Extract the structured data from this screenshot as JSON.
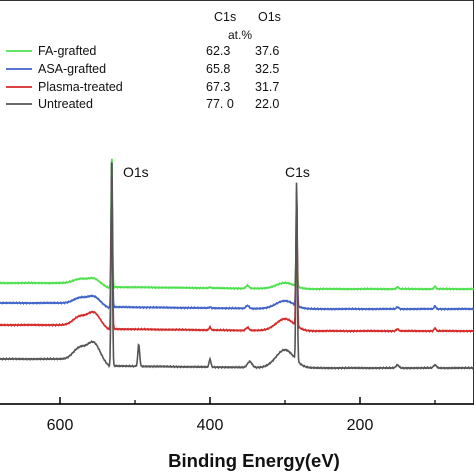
{
  "chart_data": {
    "type": "line",
    "title": "",
    "xlabel": "Binding Energy(eV)",
    "ylabel": "",
    "x_reversed": true,
    "xlim": [
      770,
      0
    ],
    "x_ticks": [
      600,
      400,
      200
    ],
    "x_tick_labels": [
      "600",
      "400",
      "200"
    ],
    "table": {
      "col_headers": [
        "C1s",
        "O1s"
      ],
      "unit_label": "at.%"
    },
    "peak_labels": [
      {
        "text": "O1s",
        "x": 531
      },
      {
        "text": "C1s",
        "x": 284
      }
    ],
    "series": [
      {
        "name": "FA-grafted",
        "color": "#4fe04f",
        "c1s": "62.3",
        "o1s": "37.6",
        "features": {
          "c1s_peak": 0.42,
          "o1s_peak": 1.0,
          "n1s": 0.005
        }
      },
      {
        "name": "ASA-grafted",
        "color": "#3f63c8",
        "c1s": "65.8",
        "o1s": "32.5",
        "features": {
          "c1s_peak": 0.5,
          "o1s_peak": 0.96,
          "n1s": 0.006
        }
      },
      {
        "name": "Plasma-treated",
        "color": "#d42a2a",
        "c1s": "67.3",
        "o1s": "31.7",
        "features": {
          "c1s_peak": 0.95,
          "o1s_peak": 0.6,
          "n1s": 0.018
        }
      },
      {
        "name": "Untreated",
        "color": "#555555",
        "c1s": "77. 0",
        "o1s": "22.0",
        "features": {
          "c1s_peak": 1.0,
          "o1s_peak": 0.9,
          "n1s": 0.05
        }
      }
    ],
    "grid": false,
    "legend_position": "top-left"
  }
}
